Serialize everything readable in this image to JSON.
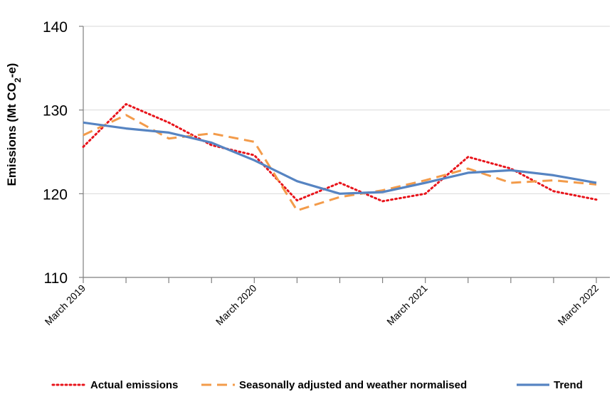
{
  "chart_data": {
    "type": "line",
    "title": "",
    "ylabel": {
      "prefix": "Emissions (Mt CO",
      "sub": "2",
      "suffix": "-e)"
    },
    "ylim": [
      110,
      140
    ],
    "yticks": [
      110,
      120,
      130,
      140
    ],
    "xtick_labels": [
      "March 2019",
      "March 2020",
      "March 2021",
      "March 2022"
    ],
    "x": [
      "Mar 2019",
      "Jun 2019",
      "Sep 2019",
      "Dec 2019",
      "Mar 2020",
      "Jun 2020",
      "Sep 2020",
      "Dec 2020",
      "Mar 2021",
      "Jun 2021",
      "Sep 2021",
      "Dec 2021",
      "Mar 2022"
    ],
    "grid": "horizontal",
    "legend": "bottom",
    "series": [
      {
        "name": "Actual emissions",
        "style": "dotted",
        "color": "#e8141b",
        "values": [
          125.6,
          130.7,
          128.5,
          125.8,
          124.6,
          119.2,
          121.3,
          119.1,
          120.0,
          124.4,
          123.0,
          120.3,
          119.3
        ]
      },
      {
        "name": "Seasonally adjusted and weather normalised",
        "style": "dashed",
        "color": "#f39b4a",
        "values": [
          127.0,
          129.4,
          126.6,
          127.2,
          126.2,
          118.0,
          119.6,
          120.4,
          121.6,
          123.0,
          121.3,
          121.6,
          121.1
        ]
      },
      {
        "name": "Trend",
        "style": "solid",
        "color": "#5684c2",
        "values": [
          128.5,
          127.8,
          127.3,
          126.1,
          124.0,
          121.5,
          120.0,
          120.2,
          121.3,
          122.5,
          122.8,
          122.2,
          121.3
        ]
      }
    ]
  }
}
